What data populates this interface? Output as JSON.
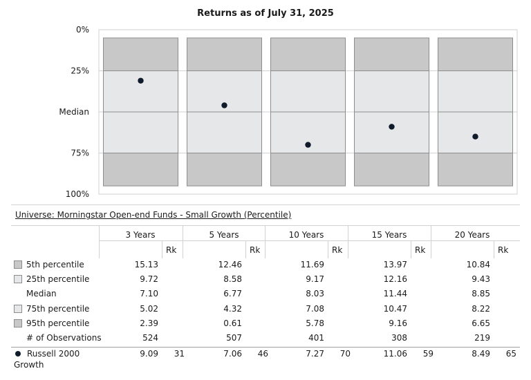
{
  "chart_data": {
    "type": "scatter",
    "title": "Returns as of July 31, 2025",
    "y_axis_ticks": [
      "0%",
      "25%",
      "Median",
      "75%",
      "100%"
    ],
    "y_axis_tick_values": [
      0,
      25,
      50,
      75,
      100
    ],
    "ylim": [
      0,
      100
    ],
    "y_inverted": true,
    "categories": [
      "3 Years",
      "5 Years",
      "10 Years",
      "15 Years",
      "20 Years"
    ],
    "bands": [
      {
        "from": 5,
        "to": 25,
        "color": "#c8c8c8"
      },
      {
        "from": 25,
        "to": 75,
        "color": "#e6e7e9"
      },
      {
        "from": 75,
        "to": 95,
        "color": "#c8c8c8"
      }
    ],
    "series": [
      {
        "name": "Russell 2000 Growth",
        "color": "#0f1a2a",
        "values": [
          31,
          46,
          70,
          59,
          65
        ]
      }
    ],
    "grid": true
  },
  "table": {
    "universe_title": "Universe: Morningstar Open-end Funds - Small Growth (Percentile)",
    "periods": [
      "3 Years",
      "5 Years",
      "10 Years",
      "15 Years",
      "20 Years"
    ],
    "rank_header": "Rk",
    "rows": [
      {
        "label": "5th percentile",
        "swatch": "dark",
        "values": [
          "15.13",
          "12.46",
          "11.69",
          "13.97",
          "10.84"
        ]
      },
      {
        "label": "25th percentile",
        "swatch": "light",
        "values": [
          "9.72",
          "8.58",
          "9.17",
          "12.16",
          "9.43"
        ]
      },
      {
        "label": "Median",
        "swatch": "none",
        "values": [
          "7.10",
          "6.77",
          "8.03",
          "11.44",
          "8.85"
        ]
      },
      {
        "label": "75th percentile",
        "swatch": "light",
        "values": [
          "5.02",
          "4.32",
          "7.08",
          "10.47",
          "8.22"
        ]
      },
      {
        "label": "95th percentile",
        "swatch": "dark",
        "values": [
          "2.39",
          "0.61",
          "5.78",
          "9.16",
          "6.65"
        ]
      },
      {
        "label": "# of Observations",
        "swatch": "none",
        "values": [
          "524",
          "507",
          "401",
          "308",
          "219"
        ]
      }
    ],
    "benchmark": {
      "label_line1": "Russell 2000",
      "label_line2": "Growth",
      "values": [
        "9.09",
        "7.06",
        "7.27",
        "11.06",
        "8.49"
      ],
      "ranks": [
        "31",
        "46",
        "70",
        "59",
        "65"
      ]
    }
  }
}
